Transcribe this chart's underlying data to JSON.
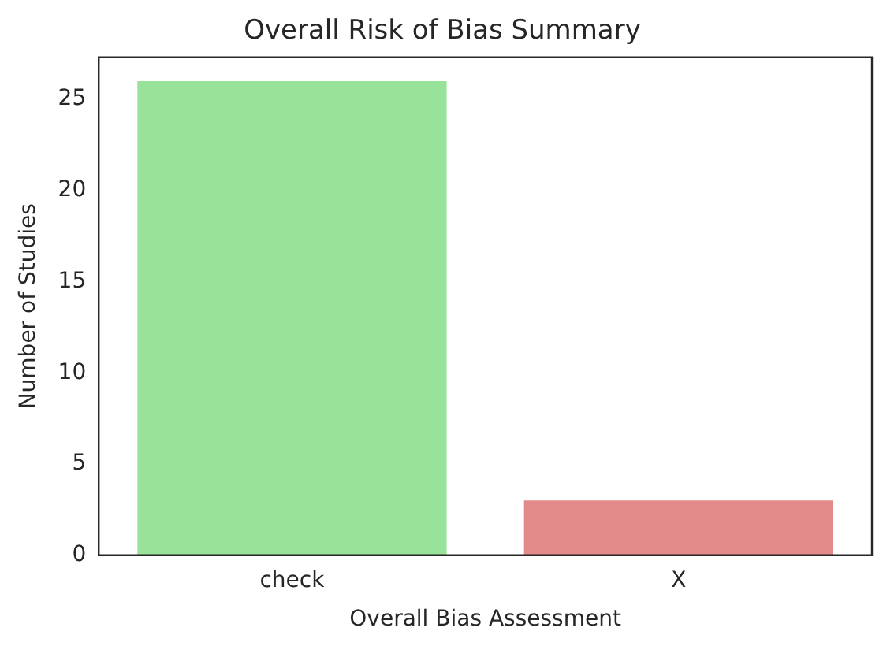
{
  "chart_data": {
    "type": "bar",
    "title": "Overall Risk of Bias Summary",
    "xlabel": "Overall Bias Assessment",
    "ylabel": "Number of Studies",
    "categories": [
      "check",
      "X"
    ],
    "values": [
      26,
      3
    ],
    "colors": [
      "#99e299",
      "#e38a8a"
    ],
    "ylim": [
      0,
      27.3
    ],
    "yticks": [
      0,
      5,
      10,
      15,
      20,
      25
    ],
    "grid": false,
    "legend": false
  }
}
